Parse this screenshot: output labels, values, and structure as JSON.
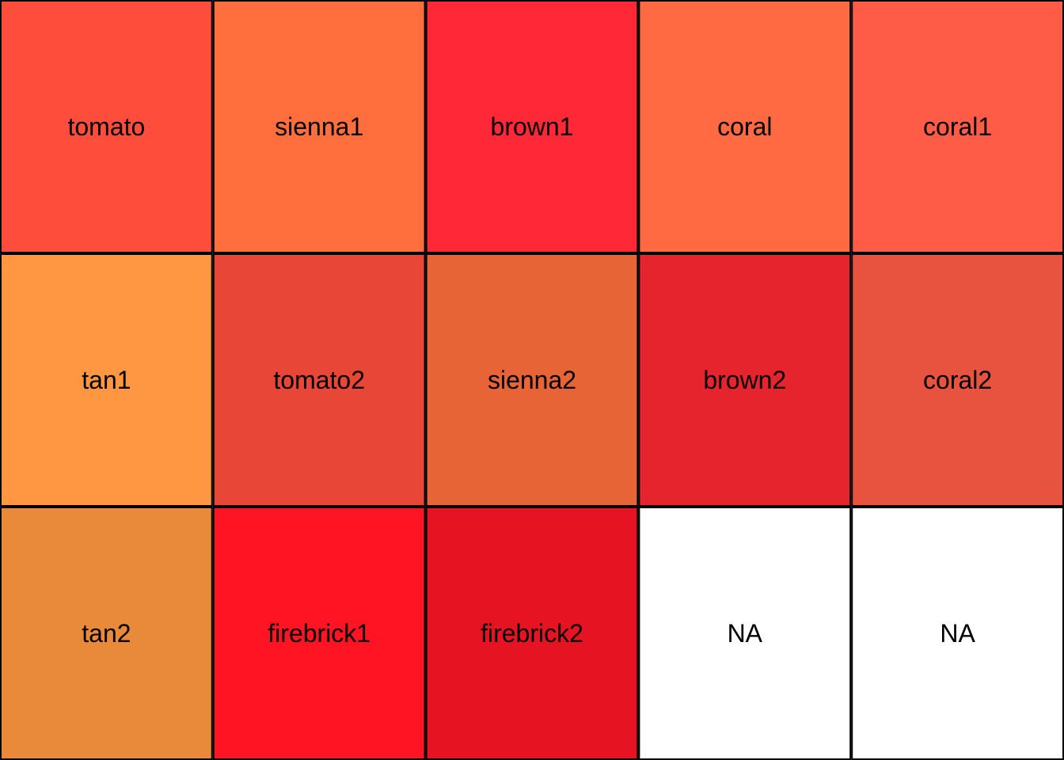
{
  "chart_data": {
    "type": "heatmap",
    "rows": 3,
    "cols": 5,
    "cells": [
      {
        "label": "tomato",
        "color": "#FF4D3B"
      },
      {
        "label": "sienna1",
        "color": "#FF6E3C"
      },
      {
        "label": "brown1",
        "color": "#FF2836"
      },
      {
        "label": "coral",
        "color": "#FF6A42"
      },
      {
        "label": "coral1",
        "color": "#FF5C47"
      },
      {
        "label": "tan1",
        "color": "#FF9742"
      },
      {
        "label": "tomato2",
        "color": "#E84636"
      },
      {
        "label": "sienna2",
        "color": "#E76436"
      },
      {
        "label": "brown2",
        "color": "#E6242E"
      },
      {
        "label": "coral2",
        "color": "#E85340"
      },
      {
        "label": "tan2",
        "color": "#E88A3A"
      },
      {
        "label": "firebrick1",
        "color": "#FF1424"
      },
      {
        "label": "firebrick2",
        "color": "#E61422"
      },
      {
        "label": "NA",
        "color": "#FFFFFF"
      },
      {
        "label": "NA",
        "color": "#FFFFFF"
      }
    ]
  }
}
